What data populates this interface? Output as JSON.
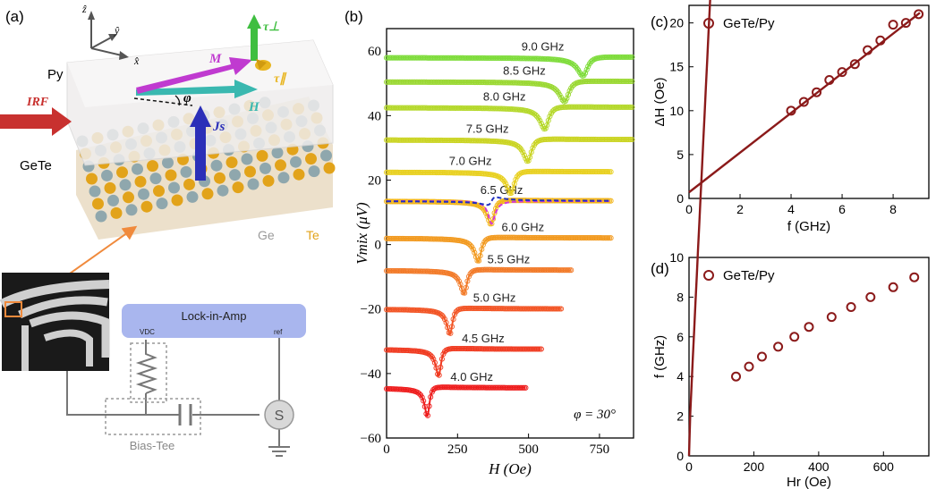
{
  "panel_labels": {
    "a": "(a)",
    "b": "(b)",
    "c": "(c)",
    "d": "(d)"
  },
  "schematic": {
    "axis_z": "ẑ",
    "axis_y": "ŷ",
    "axis_x": "x̂",
    "layer_top": "Py",
    "layer_bottom": "GeTe",
    "vec_M": "M",
    "vec_H": "H",
    "vec_Js": "Js",
    "angle": "φ",
    "tau_perp": "τ⊥",
    "tau_par": "τ∥",
    "irf": "IRF",
    "atom_ge": "Ge",
    "atom_te": "Te",
    "lockin": "Lock-in-Amp",
    "vdc": "VDC",
    "ref": "ref",
    "source": "S",
    "biastee": "Bias-Tee",
    "colors": {
      "py": "#eceaea",
      "ge": "#8fa7ad",
      "te": "#e2a31a",
      "M": "#c03ad0",
      "H": "#3ab8b0",
      "Js": "#2b2fb8",
      "irf": "#c8312f",
      "tau_perp": "#3fbe40",
      "tau_par": "#e8b520",
      "lockin": "#a9b6ee"
    }
  },
  "chart_data": [
    {
      "panel": "b",
      "type": "line",
      "xlabel": "H (Oe)",
      "ylabel": "Vmix (μV)",
      "xlim": [
        0,
        870
      ],
      "ylim": [
        -60,
        67
      ],
      "xticks": [
        0,
        250,
        500,
        750
      ],
      "yticks": [
        -60,
        -40,
        -20,
        0,
        20,
        40,
        60
      ],
      "annotation": "φ = 30°",
      "series": [
        {
          "name": "4.0 GHz",
          "label": "4.0 GHz",
          "offset": -44.5,
          "hr": 145,
          "dh": 10,
          "amp": -8.5,
          "xmax": 490,
          "color": "#ee1c1c"
        },
        {
          "name": "4.5 GHz",
          "label": "4.5 GHz",
          "offset": -32.5,
          "hr": 185,
          "dh": 11,
          "amp": -8.0,
          "xmax": 545,
          "color": "#f03a20"
        },
        {
          "name": "5.0 GHz",
          "label": "5.0 GHz",
          "offset": -20.0,
          "hr": 225,
          "dh": 12,
          "amp": -7.5,
          "xmax": 615,
          "color": "#f25424"
        },
        {
          "name": "5.5 GHz",
          "label": "5.5 GHz",
          "offset": -8.0,
          "hr": 275,
          "dh": 13.5,
          "amp": -7.0,
          "xmax": 650,
          "color": "#f27a28"
        },
        {
          "name": "6.0 GHz",
          "label": "6.0 GHz",
          "offset": 2.0,
          "hr": 325,
          "dh": 14,
          "amp": -7.0,
          "xmax": 790,
          "color": "#f29a20"
        },
        {
          "name": "6.5 GHz",
          "label": "6.5 GHz",
          "offset": 13.5,
          "hr": 370,
          "dh": 15,
          "amp": -7.0,
          "xmax": 790,
          "color": "#f2b418"
        },
        {
          "name": "7.0 GHz",
          "label": "7.0 GHz",
          "offset": 22.5,
          "hr": 440,
          "dh": 16,
          "amp": -6.5,
          "xmax": 790,
          "color": "#e8d020"
        },
        {
          "name": "7.5 GHz",
          "label": "7.5 GHz",
          "offset": 32.5,
          "hr": 500,
          "dh": 17,
          "amp": -6.5,
          "xmax": 870,
          "color": "#cad422"
        },
        {
          "name": "8.0 GHz",
          "label": "8.0 GHz",
          "offset": 42.5,
          "hr": 560,
          "dh": 18,
          "amp": -6.5,
          "xmax": 870,
          "color": "#b4d82a"
        },
        {
          "name": "8.5 GHz",
          "label": "8.5 GHz",
          "offset": 50.5,
          "hr": 630,
          "dh": 20,
          "amp": -6.0,
          "xmax": 870,
          "color": "#9ad832"
        },
        {
          "name": "9.0 GHz",
          "label": "9.0 GHz",
          "offset": 58.0,
          "hr": 695,
          "dh": 21,
          "amp": -5.5,
          "xmax": 870,
          "color": "#7edc3a"
        }
      ],
      "fit_components": {
        "symmetric_color": "#d438d8",
        "antisymmetric_color": "#2030c0"
      }
    },
    {
      "panel": "c",
      "type": "scatter",
      "legend": "GeTe/Py",
      "xlabel": "f (GHz)",
      "ylabel": "ΔH (Oe)",
      "xlim": [
        0,
        9.4
      ],
      "ylim": [
        0,
        22
      ],
      "xticks": [
        0,
        2,
        4,
        6,
        8
      ],
      "yticks": [
        0,
        5,
        10,
        15,
        20
      ],
      "x": [
        4.0,
        4.5,
        5.0,
        5.5,
        6.0,
        6.5,
        7.0,
        7.5,
        8.0,
        8.5,
        9.0
      ],
      "y": [
        10.0,
        11.0,
        12.1,
        13.5,
        14.4,
        15.3,
        16.9,
        18.0,
        19.8,
        20.0,
        21.0
      ],
      "fit": {
        "type": "linear",
        "slope": 2.26,
        "intercept": 0.7
      },
      "color": "#8b1a1a"
    },
    {
      "panel": "d",
      "type": "scatter",
      "legend": "GeTe/Py",
      "xlabel": "Hr (Oe)",
      "ylabel": "f (GHz)",
      "xlim": [
        0,
        740
      ],
      "ylim": [
        0,
        10
      ],
      "xticks": [
        0,
        200,
        400,
        600
      ],
      "yticks": [
        0,
        2,
        4,
        6,
        8,
        10
      ],
      "x": [
        145,
        185,
        225,
        275,
        325,
        370,
        440,
        500,
        560,
        630,
        695
      ],
      "y": [
        4.0,
        4.5,
        5.0,
        5.5,
        6.0,
        6.5,
        7.0,
        7.5,
        8.0,
        8.5,
        9.0
      ],
      "fit": {
        "type": "kittel",
        "coef": 0.337
      },
      "color": "#8b1a1a"
    }
  ]
}
